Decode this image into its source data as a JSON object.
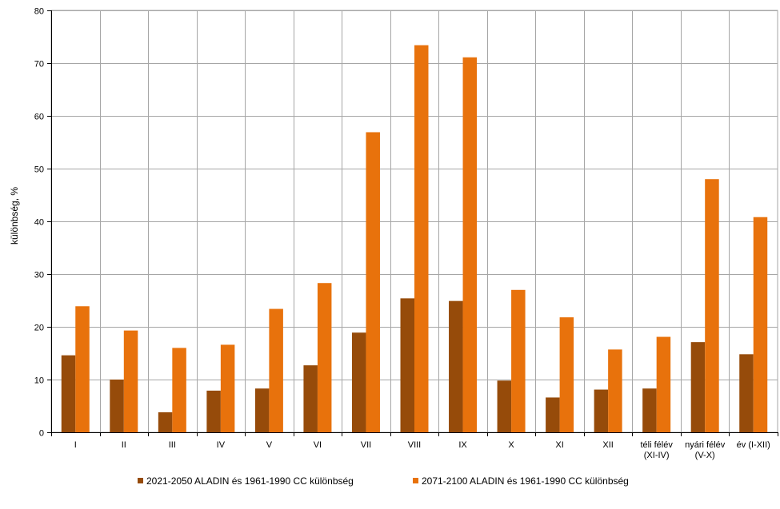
{
  "chart_data": {
    "type": "bar",
    "title": "",
    "xlabel": "",
    "ylabel": "különbség, %",
    "ylim": [
      0,
      80
    ],
    "yticks": [
      0,
      10,
      20,
      30,
      40,
      50,
      60,
      70,
      80
    ],
    "grid": true,
    "legend_position": "bottom",
    "categories": [
      [
        "I"
      ],
      [
        "II"
      ],
      [
        "III"
      ],
      [
        "IV"
      ],
      [
        "V"
      ],
      [
        "VI"
      ],
      [
        "VII"
      ],
      [
        "VIII"
      ],
      [
        "IX"
      ],
      [
        "X"
      ],
      [
        "XI"
      ],
      [
        "XII"
      ],
      [
        "téli félév",
        "(XI-IV)"
      ],
      [
        "nyári félév",
        "(V-X)"
      ],
      [
        "év (I-XII)"
      ]
    ],
    "series": [
      {
        "name": "2021-2050 ALADIN és 1961-1990 CC különbség",
        "color": "#964B0A",
        "values": [
          14.6,
          10.0,
          3.8,
          7.9,
          8.3,
          12.7,
          18.9,
          25.4,
          24.9,
          9.8,
          6.6,
          8.1,
          8.3,
          17.1,
          14.8
        ]
      },
      {
        "name": "2071-2100 ALADIN és 1961-1990 CC különbség",
        "color": "#E8720C",
        "values": [
          23.9,
          19.3,
          16.0,
          16.6,
          23.4,
          28.3,
          56.9,
          73.4,
          71.1,
          27.0,
          21.8,
          15.7,
          18.1,
          48.0,
          40.8
        ]
      }
    ]
  }
}
